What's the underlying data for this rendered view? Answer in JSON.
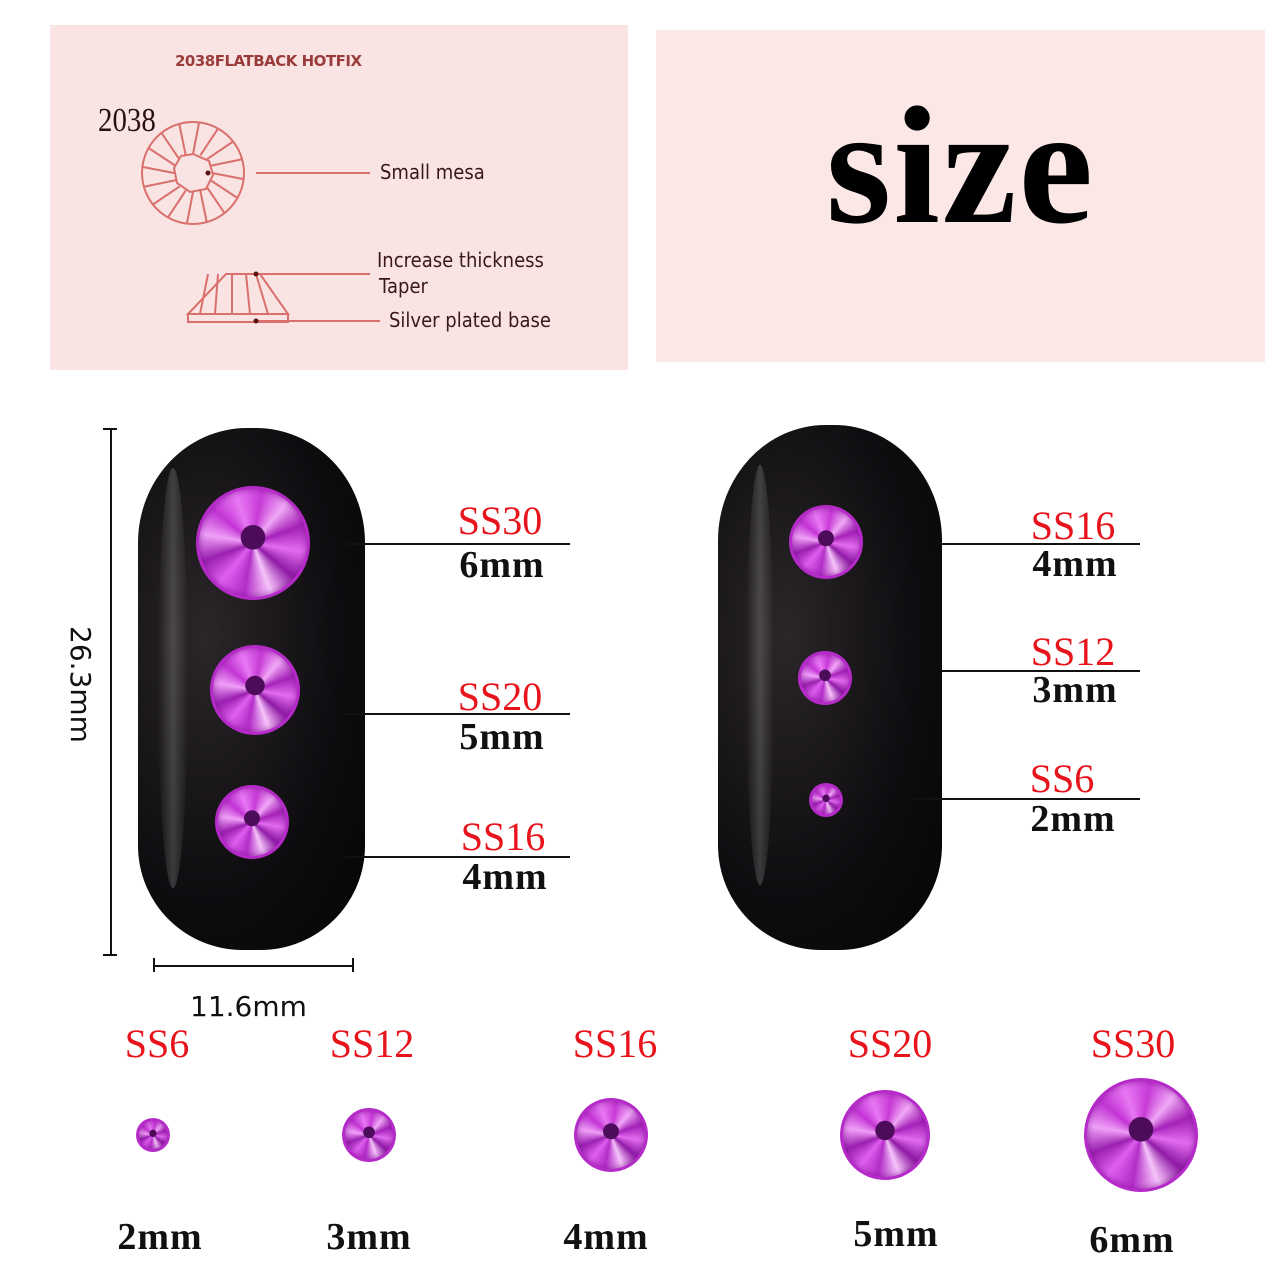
{
  "diagram": {
    "title": "2038FLATBACK HOTFIX",
    "model": "2038",
    "labels": {
      "mesa": "Small mesa",
      "thickness": "Increase thickness",
      "taper": "Taper",
      "base": "Silver plated base"
    },
    "line_color": "#d9706e"
  },
  "heading": "size",
  "dimensions": {
    "height": "26.3mm",
    "width": "11.6mm"
  },
  "nail_left": [
    {
      "ss": "SS30",
      "mm": "6mm"
    },
    {
      "ss": "SS20",
      "mm": "5mm"
    },
    {
      "ss": "SS16",
      "mm": "4mm"
    }
  ],
  "nail_right": [
    {
      "ss": "SS16",
      "mm": "4mm"
    },
    {
      "ss": "SS12",
      "mm": "3mm"
    },
    {
      "ss": "SS6",
      "mm": "2mm"
    }
  ],
  "lineup": [
    {
      "ss": "SS6",
      "mm": "2mm"
    },
    {
      "ss": "SS12",
      "mm": "3mm"
    },
    {
      "ss": "SS16",
      "mm": "4mm"
    },
    {
      "ss": "SS20",
      "mm": "5mm"
    },
    {
      "ss": "SS30",
      "mm": "6mm"
    }
  ],
  "colors": {
    "size_code": "#e8141b",
    "gem": "#c73ad6",
    "panel": "#f9e4e3"
  }
}
